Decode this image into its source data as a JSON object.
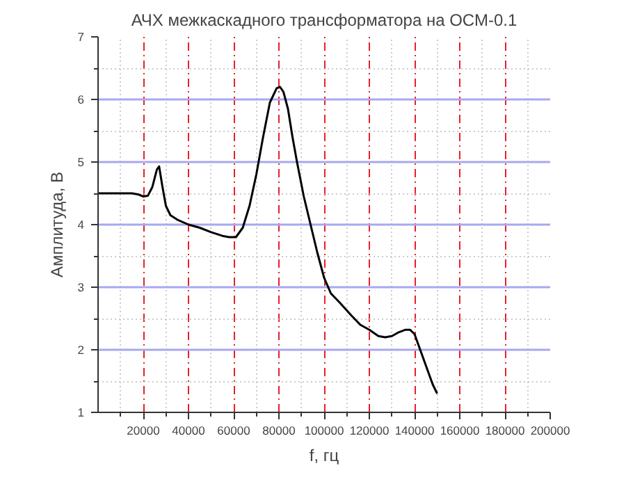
{
  "chart_data": {
    "type": "line",
    "title": "АЧХ межкаскадного трансформатора на ОСМ-0.1",
    "xlabel": "f, гц",
    "ylabel": "Амплитуда, В",
    "x": [
      0,
      5000,
      10000,
      15000,
      18000,
      20000,
      22000,
      24000,
      26000,
      27000,
      28500,
      30000,
      32000,
      35000,
      40000,
      45000,
      50000,
      55000,
      58000,
      61000,
      64000,
      67000,
      70000,
      73000,
      76000,
      79000,
      80500,
      82000,
      84000,
      86000,
      88000,
      91000,
      94000,
      97000,
      100000,
      103000,
      107000,
      112000,
      116000,
      120000,
      124000,
      127000,
      130000,
      133000,
      136000,
      138000,
      140000,
      142000,
      145000,
      148000,
      150000
    ],
    "values": [
      4.5,
      4.5,
      4.5,
      4.5,
      4.48,
      4.45,
      4.46,
      4.6,
      4.88,
      4.93,
      4.6,
      4.3,
      4.15,
      4.08,
      4.0,
      3.95,
      3.88,
      3.82,
      3.8,
      3.8,
      3.95,
      4.3,
      4.8,
      5.4,
      5.95,
      6.18,
      6.2,
      6.12,
      5.85,
      5.4,
      5.0,
      4.45,
      4.0,
      3.55,
      3.15,
      2.9,
      2.75,
      2.55,
      2.4,
      2.32,
      2.22,
      2.2,
      2.22,
      2.28,
      2.32,
      2.32,
      2.25,
      2.05,
      1.75,
      1.45,
      1.3
    ],
    "color": "#000000",
    "line_style": "solid",
    "marker": "none",
    "xlim": [
      0,
      200000
    ],
    "ylim": [
      1,
      7
    ],
    "xticks": [
      20000,
      40000,
      60000,
      80000,
      100000,
      120000,
      140000,
      160000,
      180000,
      200000
    ],
    "yticks": [
      1,
      2,
      3,
      4,
      5,
      6,
      7
    ],
    "grid": true
  }
}
